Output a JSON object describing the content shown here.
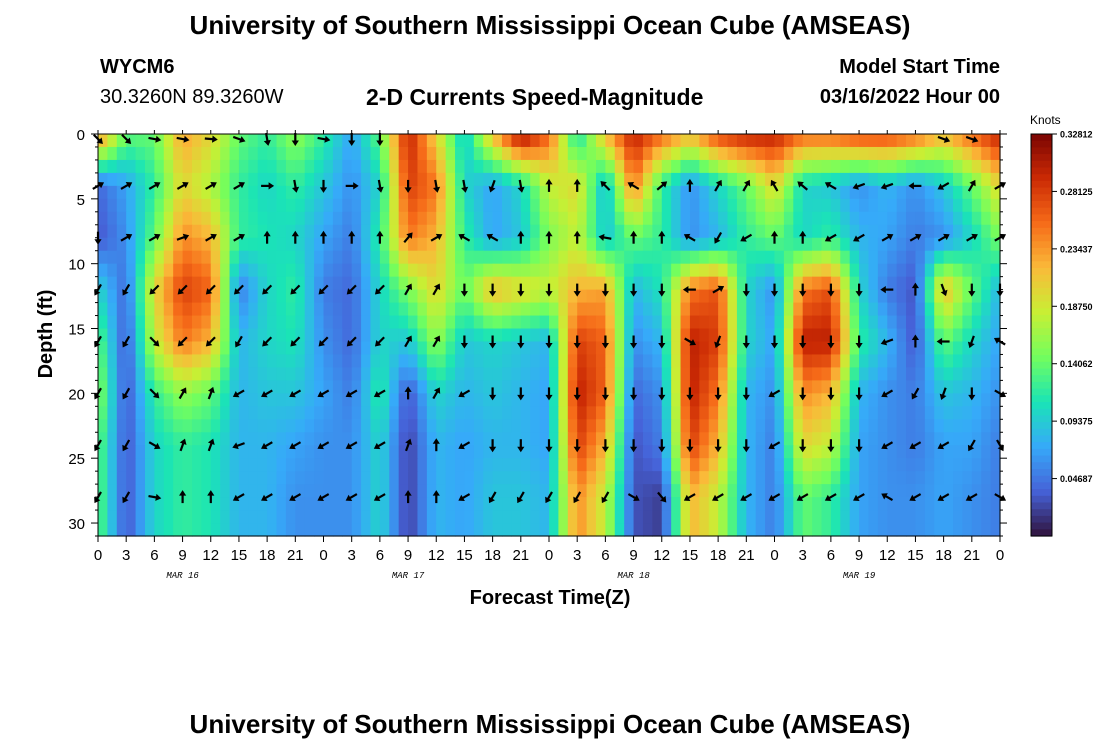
{
  "header": {
    "title": "University of Southern Mississippi Ocean Cube (AMSEAS)",
    "station": "WYCM6",
    "coords": "30.3260N  89.3260W",
    "subtitle": "2-D Currents Speed-Magnitude",
    "model_label": "Model Start Time",
    "model_time": "03/16/2022 Hour 00"
  },
  "footer": {
    "title": "University of Southern Mississippi Ocean Cube (AMSEAS)"
  },
  "colors": {
    "scale": [
      "#30123b",
      "#4662d8",
      "#36aaf9",
      "#1ae4b6",
      "#72fe5e",
      "#c8ef34",
      "#faba39",
      "#f66b19",
      "#cb2a04",
      "#7a0403"
    ]
  },
  "chart_data": {
    "type": "heatmap",
    "xlabel": "Forecast Time(Z)",
    "ylabel": "Depth (ft)",
    "x_ticks": [
      "0",
      "3",
      "6",
      "9",
      "12",
      "15",
      "18",
      "21",
      "0",
      "3",
      "6",
      "9",
      "12",
      "15",
      "18",
      "21",
      "0",
      "3",
      "6",
      "9",
      "12",
      "15",
      "18",
      "21",
      "0",
      "3",
      "6",
      "9",
      "12",
      "15",
      "18",
      "21",
      "0"
    ],
    "date_labels": [
      "MAR 16",
      "MAR 17",
      "MAR 18",
      "MAR 19"
    ],
    "xlim": [
      0,
      96
    ],
    "ylim": [
      0,
      31
    ],
    "y_ticks": [
      0,
      5,
      10,
      15,
      20,
      25,
      30
    ],
    "colorbar": {
      "unit": "Knots",
      "ticks": [
        "0.32812",
        "0.28125",
        "0.23437",
        "0.18750",
        "0.14062",
        "0.09375",
        "0.04687"
      ],
      "range": [
        0,
        0.328125
      ]
    },
    "depths_ft": [
      0,
      4,
      8,
      12,
      16,
      20,
      24,
      28
    ],
    "speed_knots": [
      [
        0.25,
        0.14,
        0.14,
        0.23,
        0.2,
        0.14,
        0.12,
        0.16,
        0.12,
        0.07,
        0.14,
        0.3,
        0.2,
        0.09,
        0.22,
        0.32,
        0.26,
        0.1,
        0.22,
        0.3,
        0.26,
        0.22,
        0.28,
        0.3,
        0.3,
        0.26,
        0.26,
        0.28,
        0.28,
        0.26,
        0.22,
        0.26,
        0.3
      ],
      [
        0.04,
        0.07,
        0.12,
        0.2,
        0.17,
        0.12,
        0.1,
        0.12,
        0.09,
        0.06,
        0.1,
        0.28,
        0.25,
        0.1,
        0.07,
        0.1,
        0.18,
        0.2,
        0.08,
        0.25,
        0.12,
        0.06,
        0.1,
        0.14,
        0.2,
        0.1,
        0.09,
        0.06,
        0.08,
        0.06,
        0.09,
        0.14,
        0.2
      ],
      [
        0.03,
        0.06,
        0.14,
        0.24,
        0.22,
        0.12,
        0.11,
        0.1,
        0.07,
        0.05,
        0.12,
        0.25,
        0.22,
        0.12,
        0.07,
        0.09,
        0.15,
        0.18,
        0.09,
        0.14,
        0.12,
        0.06,
        0.08,
        0.12,
        0.14,
        0.1,
        0.12,
        0.08,
        0.07,
        0.05,
        0.06,
        0.1,
        0.15
      ],
      [
        0.1,
        0.04,
        0.2,
        0.28,
        0.26,
        0.05,
        0.1,
        0.12,
        0.05,
        0.04,
        0.1,
        0.15,
        0.2,
        0.14,
        0.22,
        0.2,
        0.18,
        0.22,
        0.23,
        0.08,
        0.11,
        0.25,
        0.27,
        0.1,
        0.06,
        0.25,
        0.27,
        0.1,
        0.05,
        0.03,
        0.22,
        0.14,
        0.08
      ],
      [
        0.14,
        0.03,
        0.18,
        0.25,
        0.22,
        0.08,
        0.1,
        0.11,
        0.06,
        0.04,
        0.1,
        0.09,
        0.16,
        0.09,
        0.1,
        0.09,
        0.08,
        0.28,
        0.26,
        0.06,
        0.08,
        0.3,
        0.28,
        0.1,
        0.07,
        0.3,
        0.3,
        0.12,
        0.08,
        0.03,
        0.14,
        0.1,
        0.07
      ],
      [
        0.16,
        0.03,
        0.12,
        0.16,
        0.14,
        0.08,
        0.09,
        0.09,
        0.07,
        0.05,
        0.12,
        0.03,
        0.1,
        0.08,
        0.09,
        0.08,
        0.07,
        0.3,
        0.26,
        0.04,
        0.06,
        0.3,
        0.25,
        0.08,
        0.06,
        0.24,
        0.22,
        0.08,
        0.06,
        0.05,
        0.09,
        0.08,
        0.06
      ],
      [
        0.14,
        0.03,
        0.1,
        0.12,
        0.11,
        0.08,
        0.08,
        0.07,
        0.06,
        0.06,
        0.1,
        0.02,
        0.08,
        0.07,
        0.08,
        0.08,
        0.07,
        0.28,
        0.22,
        0.03,
        0.05,
        0.28,
        0.22,
        0.08,
        0.05,
        0.2,
        0.18,
        0.07,
        0.06,
        0.05,
        0.07,
        0.07,
        0.05
      ],
      [
        0.14,
        0.03,
        0.1,
        0.12,
        0.11,
        0.08,
        0.08,
        0.06,
        0.06,
        0.06,
        0.1,
        0.02,
        0.08,
        0.07,
        0.09,
        0.09,
        0.08,
        0.24,
        0.18,
        0.03,
        0.02,
        0.22,
        0.18,
        0.08,
        0.05,
        0.14,
        0.12,
        0.07,
        0.06,
        0.06,
        0.07,
        0.06,
        0.05
      ]
    ],
    "arrow_depths_ft": [
      0,
      4,
      8,
      12,
      16,
      20,
      24,
      28
    ],
    "arrow_direction_deg": [
      [
        135,
        135,
        100,
        100,
        95,
        110,
        170,
        180,
        100,
        180,
        180,
        -1,
        -1,
        -1,
        -1,
        -1,
        -1,
        -1,
        -1,
        -1,
        -1,
        -1,
        -1,
        -1,
        -1,
        -1,
        -1,
        -1,
        -1,
        -1,
        110,
        110,
        -1
      ],
      [
        60,
        60,
        60,
        60,
        60,
        60,
        90,
        170,
        180,
        90,
        170,
        180,
        170,
        170,
        200,
        170,
        0,
        0,
        315,
        300,
        50,
        0,
        30,
        30,
        330,
        310,
        300,
        250,
        250,
        270,
        240,
        30,
        60
      ],
      [
        180,
        60,
        60,
        70,
        60,
        60,
        0,
        0,
        0,
        0,
        0,
        40,
        60,
        300,
        300,
        0,
        0,
        0,
        280,
        0,
        0,
        300,
        210,
        240,
        0,
        0,
        240,
        240,
        60,
        60,
        60,
        60,
        60
      ],
      [
        210,
        210,
        225,
        225,
        225,
        225,
        225,
        225,
        225,
        225,
        225,
        30,
        30,
        180,
        180,
        180,
        180,
        180,
        180,
        180,
        180,
        270,
        60,
        180,
        180,
        180,
        180,
        180,
        270,
        0,
        160,
        180,
        180
      ],
      [
        210,
        210,
        135,
        225,
        225,
        210,
        225,
        225,
        225,
        225,
        225,
        30,
        30,
        180,
        180,
        180,
        180,
        180,
        180,
        180,
        180,
        120,
        200,
        180,
        180,
        180,
        180,
        180,
        250,
        0,
        270,
        200,
        300
      ],
      [
        210,
        210,
        135,
        30,
        20,
        240,
        240,
        240,
        240,
        240,
        240,
        0,
        30,
        240,
        180,
        180,
        180,
        180,
        180,
        180,
        180,
        180,
        180,
        180,
        240,
        180,
        180,
        180,
        240,
        210,
        200,
        180,
        120
      ],
      [
        210,
        210,
        120,
        20,
        20,
        250,
        240,
        240,
        240,
        240,
        240,
        20,
        0,
        240,
        180,
        180,
        180,
        180,
        180,
        180,
        180,
        180,
        180,
        180,
        240,
        180,
        180,
        180,
        240,
        240,
        240,
        210,
        150
      ],
      [
        210,
        210,
        100,
        0,
        0,
        240,
        240,
        240,
        240,
        240,
        240,
        0,
        0,
        240,
        210,
        210,
        210,
        210,
        210,
        120,
        140,
        240,
        240,
        240,
        240,
        240,
        240,
        240,
        300,
        240,
        240,
        240,
        120
      ]
    ]
  }
}
